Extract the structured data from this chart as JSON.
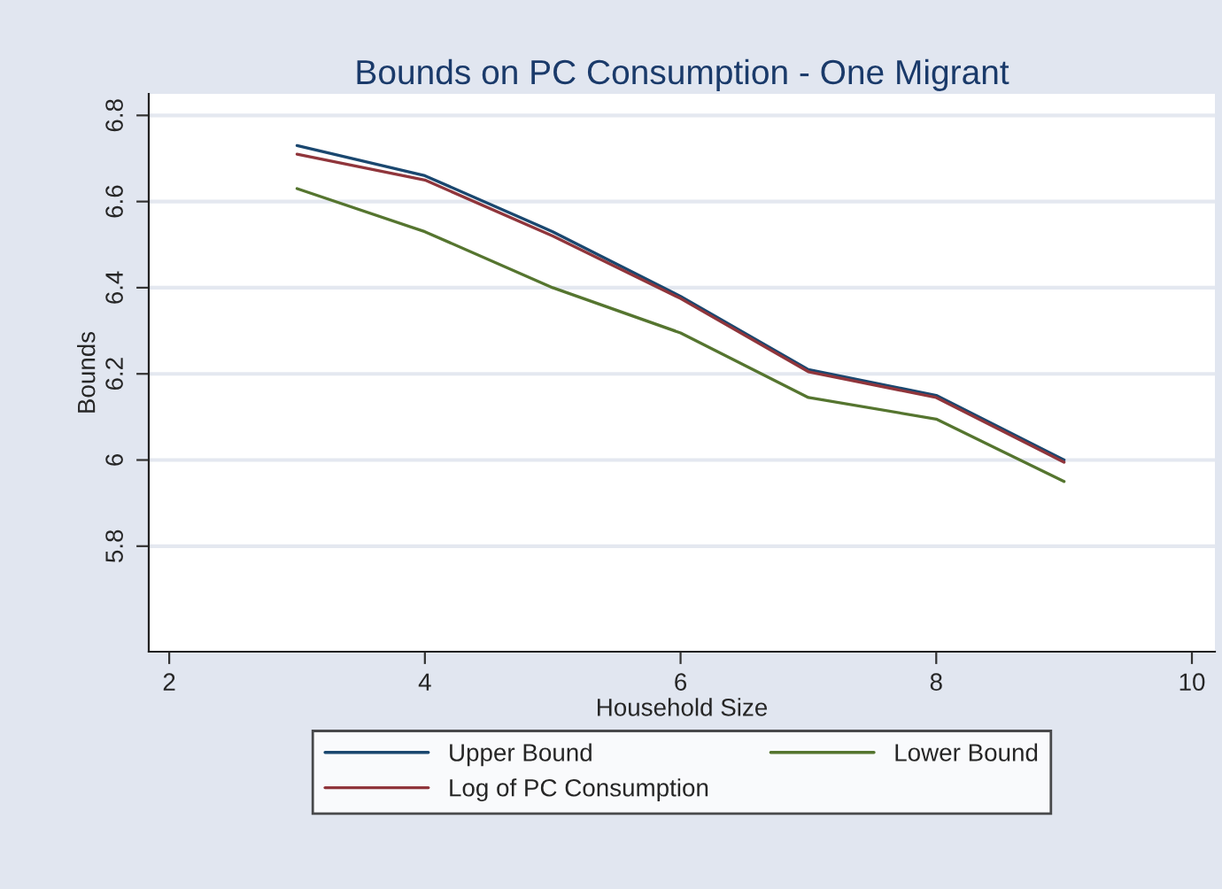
{
  "chart_data": {
    "type": "line",
    "title": "Bounds on PC Consumption - One Migrant",
    "xlabel": "Household Size",
    "ylabel": "Bounds",
    "x": [
      3,
      4,
      5,
      6,
      7,
      8,
      9
    ],
    "series": [
      {
        "name": "Upper Bound",
        "color": "#1a476f",
        "values": [
          6.73,
          6.66,
          6.53,
          6.38,
          6.21,
          6.15,
          6.0
        ]
      },
      {
        "name": "Log of PC Consumption",
        "color": "#90353b",
        "values": [
          6.71,
          6.65,
          6.52,
          6.375,
          6.205,
          6.145,
          5.995
        ]
      },
      {
        "name": "Lower Bound",
        "color": "#55752f",
        "values": [
          6.63,
          6.53,
          6.4,
          6.295,
          6.145,
          6.095,
          5.95
        ]
      }
    ],
    "xlim": [
      1.84,
      10.18
    ],
    "ylim": [
      5.555,
      6.85
    ],
    "xticks": [
      2,
      4,
      6,
      8,
      10
    ],
    "yticks": [
      5.8,
      6,
      6.2,
      6.4,
      6.6,
      6.8
    ],
    "grid": "y",
    "legend": "bottom",
    "marker": "none",
    "line_style": "solid"
  }
}
